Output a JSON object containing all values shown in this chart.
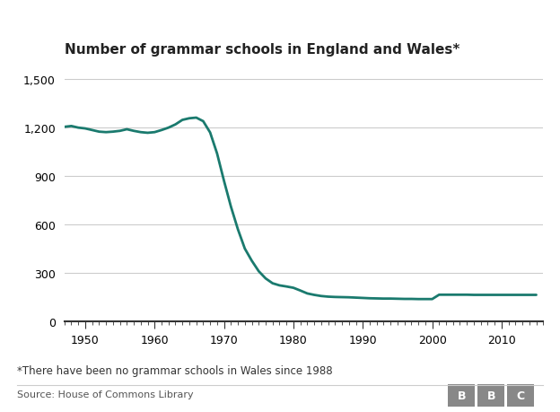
{
  "title": "Number of grammar schools in England and Wales*",
  "footnote": "*There have been no grammar schools in Wales since 1988",
  "source": "Source: House of Commons Library",
  "line_color": "#1a7a6e",
  "background_color": "#ffffff",
  "xlim": [
    1947,
    2016
  ],
  "ylim": [
    0,
    1600
  ],
  "yticks": [
    0,
    300,
    600,
    900,
    1200,
    1500
  ],
  "xticks": [
    1950,
    1960,
    1970,
    1980,
    1990,
    2000,
    2010
  ],
  "years": [
    1947,
    1948,
    1949,
    1950,
    1951,
    1952,
    1953,
    1954,
    1955,
    1956,
    1957,
    1958,
    1959,
    1960,
    1961,
    1962,
    1963,
    1964,
    1965,
    1966,
    1967,
    1968,
    1969,
    1970,
    1971,
    1972,
    1973,
    1974,
    1975,
    1976,
    1977,
    1978,
    1979,
    1980,
    1981,
    1982,
    1983,
    1984,
    1985,
    1986,
    1987,
    1988,
    1989,
    1990,
    1991,
    1992,
    1993,
    1994,
    1995,
    1996,
    1997,
    1998,
    1999,
    2000,
    2001,
    2002,
    2003,
    2004,
    2005,
    2006,
    2007,
    2008,
    2009,
    2010,
    2011,
    2012,
    2013,
    2014,
    2015
  ],
  "values": [
    1205,
    1210,
    1200,
    1195,
    1185,
    1175,
    1172,
    1175,
    1180,
    1190,
    1180,
    1172,
    1168,
    1172,
    1185,
    1200,
    1220,
    1248,
    1258,
    1262,
    1240,
    1170,
    1040,
    870,
    710,
    570,
    450,
    375,
    310,
    265,
    235,
    222,
    215,
    207,
    190,
    172,
    163,
    156,
    152,
    150,
    149,
    148,
    146,
    144,
    142,
    141,
    140,
    140,
    139,
    138,
    138,
    137,
    137,
    137,
    164,
    164,
    164,
    164,
    164,
    163,
    163,
    163,
    163,
    163,
    163,
    163,
    163,
    163,
    163
  ],
  "bbc_box_color": "#888888"
}
